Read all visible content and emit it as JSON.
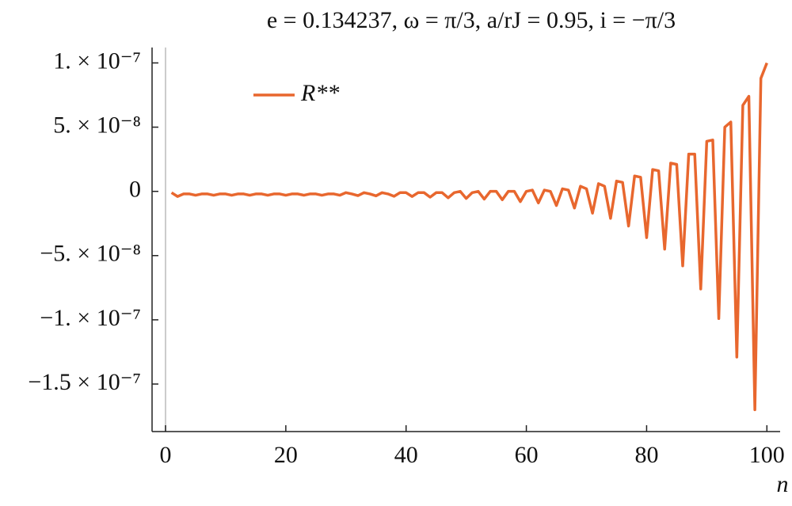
{
  "chart_data": {
    "type": "line",
    "title": "e = 0.134237, ω = π/3, a/rJ = 0.95, i = −π/3",
    "x_label": "n",
    "x": [
      1,
      2,
      3,
      4,
      5,
      6,
      7,
      8,
      9,
      10,
      11,
      12,
      13,
      14,
      15,
      16,
      17,
      18,
      19,
      20,
      21,
      22,
      23,
      24,
      25,
      26,
      27,
      28,
      29,
      30,
      31,
      32,
      33,
      34,
      35,
      36,
      37,
      38,
      39,
      40,
      41,
      42,
      43,
      44,
      45,
      46,
      47,
      48,
      49,
      50,
      51,
      52,
      53,
      54,
      55,
      56,
      57,
      58,
      59,
      60,
      61,
      62,
      63,
      64,
      65,
      66,
      67,
      68,
      69,
      70,
      71,
      72,
      73,
      74,
      75,
      76,
      77,
      78,
      79,
      80,
      81,
      82,
      83,
      84,
      85,
      86,
      87,
      88,
      89,
      90,
      91,
      92,
      93,
      94,
      95,
      96,
      97,
      98,
      99,
      100
    ],
    "series": [
      {
        "name": "R**",
        "color": "#e8672e",
        "values": [
          -1e-09,
          -4e-09,
          -2e-09,
          -2e-09,
          -3e-09,
          -2e-09,
          -2e-09,
          -3e-09,
          -2e-09,
          -2e-09,
          -3e-09,
          -2e-09,
          -2e-09,
          -3e-09,
          -2e-09,
          -2e-09,
          -3e-09,
          -2e-09,
          -2e-09,
          -3e-09,
          -2e-09,
          -2e-09,
          -3e-09,
          -2e-09,
          -2e-09,
          -3e-09,
          -2e-09,
          -2e-09,
          -3e-09,
          -1e-09,
          -2e-09,
          -3.3e-09,
          -1e-09,
          -2e-09,
          -3.5e-09,
          -1e-09,
          -2e-09,
          -3.8e-09,
          -1e-09,
          -1e-09,
          -4e-09,
          -1e-09,
          -1e-09,
          -4.5e-09,
          -1e-09,
          -1e-09,
          -5e-09,
          -1e-09,
          0,
          -5.5e-09,
          -1e-09,
          0,
          -6e-09,
          0,
          0,
          -6.5e-09,
          0,
          0,
          -8e-09,
          0,
          1e-09,
          -9e-09,
          1e-09,
          0,
          -1.1e-08,
          2e-09,
          1e-09,
          -1.3e-08,
          4e-09,
          2e-09,
          -1.7e-08,
          6e-09,
          4e-09,
          -2.1e-08,
          8e-09,
          7e-09,
          -2.7e-08,
          1.2e-08,
          1.1e-08,
          -3.6e-08,
          1.7e-08,
          1.6e-08,
          -4.5e-08,
          2.2e-08,
          2.1e-08,
          -5.8e-08,
          2.9e-08,
          2.9e-08,
          -7.6e-08,
          3.9e-08,
          4e-08,
          -9.9e-08,
          5e-08,
          5.4e-08,
          -1.29e-07,
          6.7e-08,
          7.4e-08,
          -1.7e-07,
          8.8e-08,
          1e-07
        ]
      }
    ],
    "xlim": [
      -2.24,
      102.2
    ],
    "xticks": [
      0,
      20,
      40,
      60,
      80,
      100
    ],
    "ylim": [
      -1.87e-07,
      1.12e-07
    ],
    "yticks": [
      {
        "value": 1e-07,
        "label": "1. × 10⁻⁷"
      },
      {
        "value": 5e-08,
        "label": "5. × 10⁻⁸"
      },
      0,
      {
        "value": -5e-08,
        "label": "−5. × 10⁻⁸"
      },
      {
        "value": -1e-07,
        "label": "−1. × 10⁻⁷"
      },
      {
        "value": -1.5e-07,
        "label": "−1.5 × 10⁻⁷"
      }
    ],
    "legend": "upper left",
    "grid": false
  }
}
